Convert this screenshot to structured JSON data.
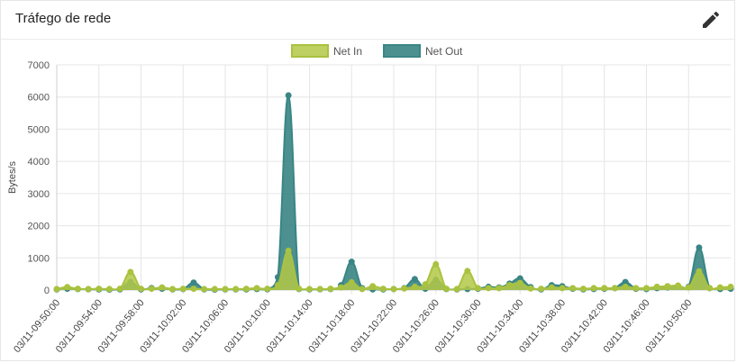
{
  "card": {
    "title": "Tráfego de rede"
  },
  "icons": {
    "edit": "pencil-icon"
  },
  "chart_data": {
    "type": "area",
    "ylabel": "Bytes/s",
    "ylim": [
      0,
      7000
    ],
    "yticks": [
      0,
      1000,
      2000,
      3000,
      4000,
      5000,
      6000,
      7000
    ],
    "legend_position": "top-center",
    "grid": true,
    "x_tick_labels": [
      "03/11-09:50:00",
      "03/11-09:54:00",
      "03/11-09:58:00",
      "03/11-10:02:00",
      "03/11-10:06:00",
      "03/11-10:10:00",
      "03/11-10:14:00",
      "03/11-10:18:00",
      "03/11-10:22:00",
      "03/11-10:26:00",
      "03/11-10:30:00",
      "03/11-10:34:00",
      "03/11-10:38:00",
      "03/11-10:42:00",
      "03/11-10:46:00",
      "03/11-10:50:00"
    ],
    "x_minutes_step": 1,
    "series": [
      {
        "name": "Net Out",
        "color": "#3a8585",
        "fill": "rgba(46,125,125,0.85)",
        "values": [
          20,
          40,
          30,
          25,
          20,
          15,
          20,
          250,
          20,
          60,
          40,
          20,
          30,
          230,
          20,
          15,
          20,
          20,
          20,
          30,
          25,
          400,
          6050,
          30,
          20,
          25,
          30,
          150,
          880,
          60,
          20,
          20,
          30,
          60,
          340,
          40,
          320,
          30,
          20,
          30,
          40,
          100,
          80,
          200,
          360,
          90,
          20,
          150,
          120,
          40,
          20,
          30,
          40,
          60,
          250,
          40,
          30,
          60,
          80,
          120,
          100,
          1320,
          60,
          30,
          40
        ]
      },
      {
        "name": "Net In",
        "color": "#a9c23f",
        "fill": "rgba(180,200,70,0.85)",
        "values": [
          30,
          90,
          40,
          30,
          40,
          30,
          40,
          560,
          40,
          40,
          80,
          30,
          40,
          40,
          30,
          30,
          30,
          30,
          40,
          60,
          40,
          150,
          1220,
          40,
          30,
          30,
          40,
          80,
          240,
          30,
          120,
          40,
          30,
          50,
          100,
          180,
          800,
          40,
          30,
          590,
          60,
          60,
          60,
          150,
          220,
          50,
          40,
          80,
          60,
          60,
          40,
          60,
          60,
          60,
          100,
          60,
          60,
          100,
          120,
          140,
          80,
          580,
          60,
          80,
          100
        ]
      }
    ]
  }
}
